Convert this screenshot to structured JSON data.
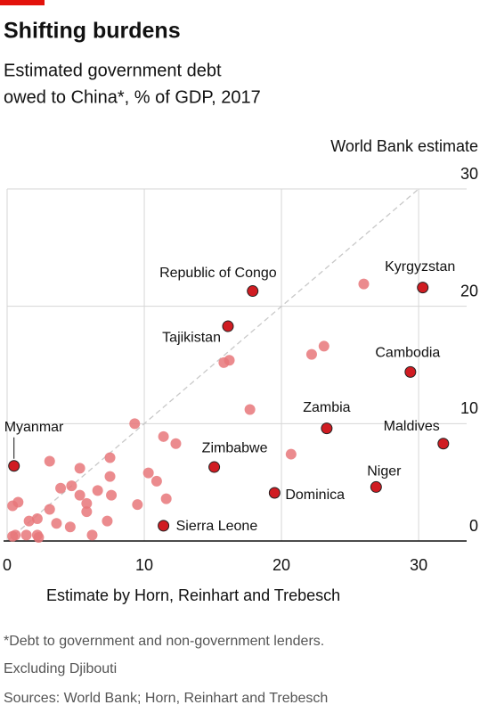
{
  "chart_data": {
    "type": "scatter",
    "title": "Shifting burdens",
    "subtitle": [
      "Estimated government debt",
      "owed to China*, % of GDP, 2017"
    ],
    "y_axis_title": "World Bank estimate",
    "x_axis_title": "Estimate by Horn, Reinhart and Trebesch",
    "notes": [
      "*Debt to government and non-government lenders.",
      "Excluding Djibouti",
      "Sources: World Bank; Horn, Reinhart and Trebesch"
    ],
    "x": [
      0.5,
      17.9,
      30.3,
      16.1,
      29.4,
      23.3,
      31.8,
      15.1,
      26.9,
      19.5,
      11.4,
      26.0,
      23.1,
      22.2,
      16.2,
      15.8,
      17.7,
      9.3,
      11.4,
      12.3,
      20.7,
      3.1,
      7.5,
      5.3,
      10.3,
      7.5,
      10.9,
      4.7,
      3.9,
      5.3,
      6.6,
      7.6,
      11.6,
      0.8,
      0.4,
      5.8,
      9.5,
      3.1,
      5.8,
      2.2,
      1.6,
      3.6,
      7.3,
      4.6,
      0.6,
      1.4,
      2.2,
      2.3,
      6.2,
      0.4
    ],
    "y": [
      6.4,
      21.3,
      21.6,
      18.3,
      14.4,
      9.6,
      8.3,
      6.3,
      4.6,
      4.1,
      1.3,
      21.9,
      16.6,
      15.9,
      15.4,
      15.2,
      11.2,
      10.0,
      8.9,
      8.3,
      7.4,
      6.8,
      7.1,
      6.2,
      5.8,
      5.5,
      5.1,
      4.7,
      4.5,
      3.9,
      4.3,
      3.9,
      3.6,
      3.3,
      3.0,
      3.2,
      3.1,
      2.7,
      2.5,
      1.9,
      1.7,
      1.5,
      1.7,
      1.2,
      0.5,
      0.5,
      0.5,
      0.3,
      0.5,
      0.4
    ],
    "point_labels": [
      "Myanmar",
      "Republic of Congo",
      "Kyrgyzstan",
      "Tajikistan",
      "Cambodia",
      "Zambia",
      "Maldives",
      "Zimbabwe",
      "Niger",
      "Dominica",
      "Sierra Leone",
      null,
      null,
      null,
      null,
      null,
      null,
      null,
      null,
      null,
      null,
      null,
      null,
      null,
      null,
      null,
      null,
      null,
      null,
      null,
      null,
      null,
      null,
      null,
      null,
      null,
      null,
      null,
      null,
      null,
      null,
      null,
      null,
      null,
      null,
      null,
      null,
      null,
      null,
      null
    ],
    "color": "#e8777a",
    "highlight_color": "#d01c22",
    "xlim": [
      0,
      33.5
    ],
    "ylim": [
      0,
      30
    ],
    "xticks": [
      0,
      10,
      20,
      30
    ],
    "yticks": [
      0,
      10,
      20,
      30
    ],
    "grid": true,
    "diagonal": true
  }
}
